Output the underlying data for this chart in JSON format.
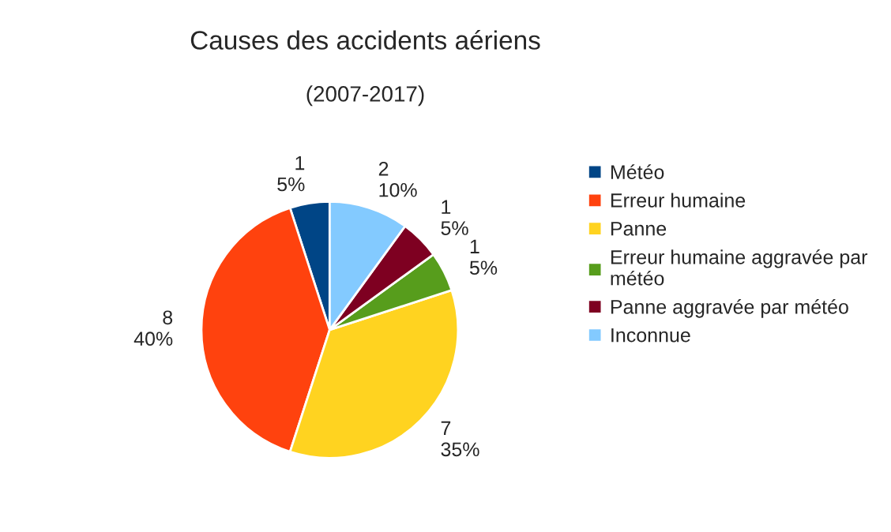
{
  "chart_data": {
    "type": "pie",
    "title": "Causes des accidents aériens",
    "subtitle": "(2007-2017)",
    "categories": [
      "Météo",
      "Erreur humaine",
      "Panne",
      "Erreur humaine aggravée par\nmétéo",
      "Panne aggravée par météo",
      "Inconnue"
    ],
    "values": [
      1,
      8,
      7,
      1,
      1,
      2
    ],
    "colors": [
      "#004586",
      "#ff420e",
      "#ffd320",
      "#579d1c",
      "#7e0021",
      "#83caff"
    ],
    "value_labels": [
      "1\n5%",
      "8\n40%",
      "7\n35%",
      "1\n5%",
      "1\n5%",
      "2\n10%"
    ],
    "legend": "right"
  }
}
